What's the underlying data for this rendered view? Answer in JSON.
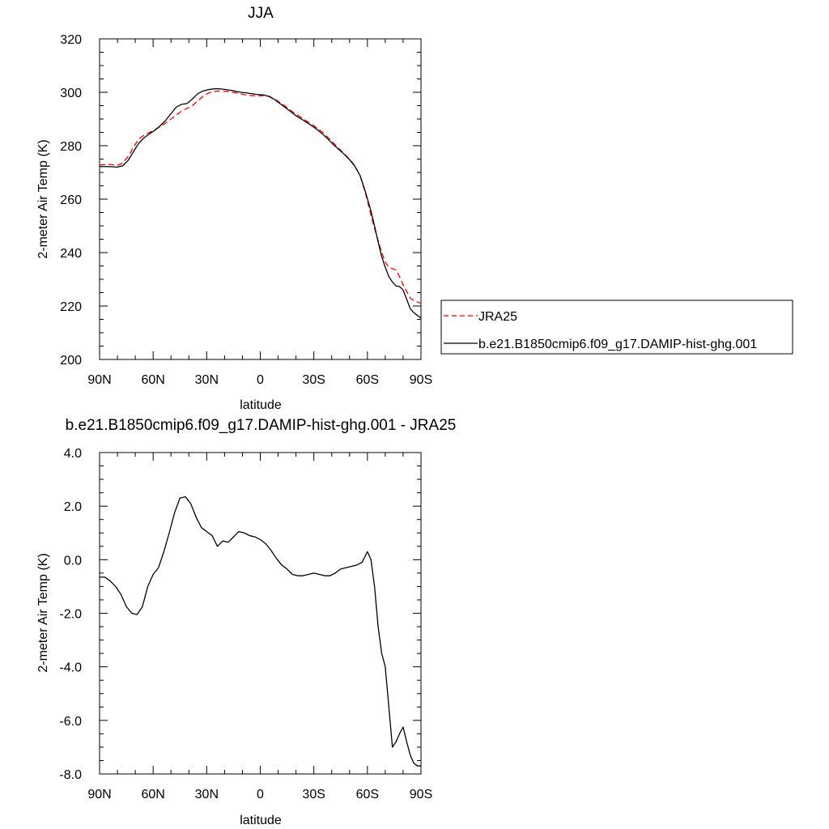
{
  "chart_data": [
    {
      "type": "line",
      "title": "JJA",
      "xlabel": "latitude",
      "ylabel": "2-meter Air Temp (K)",
      "xlim": [
        -90,
        90
      ],
      "ylim": [
        200,
        320
      ],
      "x_ticks": [
        -90,
        -60,
        -30,
        0,
        30,
        60,
        90
      ],
      "x_tick_labels": [
        "90N",
        "60N",
        "30N",
        "0",
        "30S",
        "60S",
        "90S"
      ],
      "y_ticks": [
        200,
        220,
        240,
        260,
        280,
        300,
        320
      ],
      "y_tick_labels": [
        "200",
        "220",
        "240",
        "260",
        "280",
        "300",
        "320"
      ],
      "legend_position": "right",
      "series": [
        {
          "name": "JRA25",
          "color": "#ff0000",
          "style": "dashed",
          "x": [
            -90,
            -85,
            -80,
            -77,
            -74,
            -71,
            -68,
            -65,
            -62,
            -59,
            -56,
            -53,
            -50,
            -47,
            -44,
            -41,
            -38,
            -35,
            -32,
            -29,
            -26,
            -23,
            -20,
            -17,
            -14,
            -11,
            -8,
            -5,
            -2,
            0,
            2,
            5,
            8,
            11,
            14,
            17,
            20,
            23,
            26,
            29,
            32,
            35,
            38,
            41,
            44,
            47,
            50,
            53,
            56,
            59,
            62,
            64,
            66,
            68,
            70,
            72,
            74,
            76,
            78,
            80,
            82,
            84,
            86,
            88,
            90
          ],
          "y": [
            272.8,
            273.0,
            272.7,
            273.5,
            276.0,
            279.5,
            282.5,
            284.0,
            285.0,
            286.0,
            287.2,
            288.5,
            290.0,
            291.5,
            293.0,
            294.0,
            295.0,
            296.8,
            298.5,
            299.7,
            300.3,
            300.5,
            300.4,
            300.2,
            299.8,
            299.4,
            299.0,
            298.8,
            298.6,
            298.7,
            298.8,
            298.5,
            297.5,
            296.2,
            294.8,
            293.2,
            291.8,
            290.5,
            289.2,
            288.0,
            286.5,
            285.0,
            283.0,
            281.0,
            279.0,
            277.0,
            275.0,
            272.5,
            268.5,
            262.0,
            254.0,
            249.0,
            244.5,
            240.0,
            236.5,
            234.5,
            234.0,
            233.5,
            231.0,
            228.0,
            225.5,
            223.0,
            222.0,
            221.5,
            221.0
          ]
        },
        {
          "name": "b.e21.B1850cmip6.f09_g17.DAMIP-hist-ghg.001",
          "color": "#000000",
          "style": "solid",
          "x": [
            -90,
            -85,
            -80,
            -77,
            -74,
            -71,
            -68,
            -65,
            -62,
            -59,
            -56,
            -53,
            -50,
            -47,
            -44,
            -41,
            -38,
            -35,
            -32,
            -29,
            -26,
            -23,
            -20,
            -17,
            -14,
            -11,
            -8,
            -5,
            -2,
            0,
            2,
            5,
            8,
            11,
            14,
            17,
            20,
            23,
            26,
            29,
            32,
            35,
            38,
            41,
            44,
            47,
            50,
            53,
            56,
            59,
            62,
            64,
            66,
            68,
            70,
            72,
            74,
            76,
            78,
            80,
            82,
            84,
            86,
            88,
            90
          ],
          "y": [
            272.2,
            272.2,
            272.0,
            272.5,
            274.5,
            277.8,
            281.0,
            283.0,
            284.5,
            285.8,
            287.5,
            289.5,
            292.0,
            294.5,
            295.5,
            295.8,
            297.5,
            299.5,
            300.5,
            301.0,
            301.3,
            301.3,
            301.1,
            300.8,
            300.4,
            300.0,
            299.8,
            299.5,
            299.2,
            299.1,
            299.0,
            298.4,
            297.3,
            295.8,
            294.3,
            292.8,
            291.2,
            290.0,
            288.7,
            287.4,
            286.0,
            284.3,
            282.4,
            280.4,
            278.6,
            276.8,
            274.8,
            272.3,
            268.7,
            262.5,
            255.5,
            250.0,
            244.0,
            238.5,
            234.5,
            231.0,
            229.0,
            227.5,
            227.3,
            226.0,
            222.5,
            219.0,
            217.5,
            216.5,
            215.5
          ]
        }
      ]
    },
    {
      "type": "line",
      "title": "b.e21.B1850cmip6.f09_g17.DAMIP-hist-ghg.001 - JRA25",
      "xlabel": "latitude",
      "ylabel": "2-meter Air Temp (K)",
      "xlim": [
        -90,
        90
      ],
      "ylim": [
        -8,
        4
      ],
      "x_ticks": [
        -90,
        -60,
        -30,
        0,
        30,
        60,
        90
      ],
      "x_tick_labels": [
        "90N",
        "60N",
        "30N",
        "0",
        "30S",
        "60S",
        "90S"
      ],
      "y_ticks": [
        -8,
        -6,
        -4,
        -2,
        0,
        2,
        4
      ],
      "y_tick_labels": [
        "-8.0",
        "-6.0",
        "-4.0",
        "-2.0",
        "0.0",
        "2.0",
        "4.0"
      ],
      "series": [
        {
          "color": "#000000",
          "style": "solid",
          "x": [
            -90,
            -87,
            -84,
            -81,
            -78,
            -75,
            -72,
            -69,
            -66,
            -63,
            -60,
            -57,
            -54,
            -51,
            -48,
            -45,
            -42,
            -39,
            -36,
            -33,
            -30,
            -27,
            -24,
            -21,
            -18,
            -15,
            -12,
            -9,
            -6,
            -3,
            0,
            3,
            6,
            9,
            12,
            15,
            18,
            21,
            24,
            27,
            30,
            33,
            36,
            39,
            42,
            45,
            48,
            51,
            54,
            57,
            60,
            62,
            64,
            66,
            68,
            70,
            72,
            74,
            76,
            78,
            80,
            82,
            84,
            86,
            88,
            90
          ],
          "y": [
            -0.65,
            -0.65,
            -0.8,
            -1.0,
            -1.3,
            -1.75,
            -2.0,
            -2.05,
            -1.75,
            -1.0,
            -0.55,
            -0.3,
            0.3,
            1.0,
            1.75,
            2.3,
            2.35,
            2.1,
            1.6,
            1.2,
            1.05,
            0.9,
            0.5,
            0.7,
            0.65,
            0.85,
            1.05,
            1.0,
            0.9,
            0.85,
            0.75,
            0.6,
            0.35,
            0.05,
            -0.2,
            -0.35,
            -0.55,
            -0.6,
            -0.6,
            -0.55,
            -0.5,
            -0.55,
            -0.6,
            -0.6,
            -0.5,
            -0.35,
            -0.3,
            -0.25,
            -0.2,
            -0.1,
            0.3,
            0.0,
            -1.0,
            -2.5,
            -3.5,
            -4.0,
            -5.5,
            -7.0,
            -6.8,
            -6.5,
            -6.25,
            -6.8,
            -7.3,
            -7.6,
            -7.7,
            -7.7
          ]
        }
      ]
    }
  ]
}
